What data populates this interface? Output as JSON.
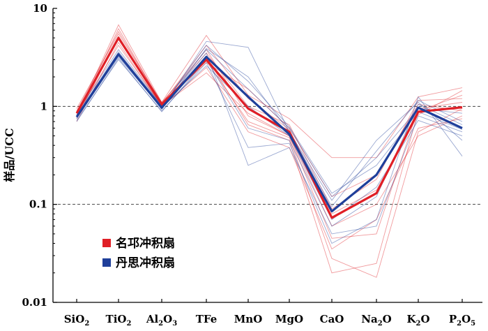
{
  "chart_data": {
    "type": "line",
    "title": "",
    "xlabel": "",
    "ylabel": "样品/UCC",
    "yscale": "log",
    "ylim": [
      0.01,
      10
    ],
    "ytick_labels": [
      "0.01",
      "0.1",
      "1",
      "10"
    ],
    "reference_lines": [
      0.1,
      1
    ],
    "categories": [
      {
        "base": "SiO",
        "sub": "2",
        "post": "",
        "sub2": ""
      },
      {
        "base": "TiO",
        "sub": "2",
        "post": "",
        "sub2": ""
      },
      {
        "base": "Al",
        "sub": "2",
        "post": "O",
        "sub2": "3"
      },
      {
        "base": "TFe",
        "sub": "",
        "post": "",
        "sub2": ""
      },
      {
        "base": "MnO",
        "sub": "",
        "post": "",
        "sub2": ""
      },
      {
        "base": "MgO",
        "sub": "",
        "post": "",
        "sub2": ""
      },
      {
        "base": "CaO",
        "sub": "",
        "post": "",
        "sub2": ""
      },
      {
        "base": "Na",
        "sub": "2",
        "post": "O",
        "sub2": ""
      },
      {
        "base": "K",
        "sub": "2",
        "post": "O",
        "sub2": ""
      },
      {
        "base": "P",
        "sub": "2",
        "post": "O",
        "sub2": "5"
      }
    ],
    "legend": [
      {
        "label": "名邛冲积扇",
        "color": "#e01f26"
      },
      {
        "label": "丹思冲积扇",
        "color": "#1f3f9a"
      }
    ],
    "series": [
      {
        "name": "名邛冲积扇",
        "color": "#e01f26",
        "role": "mean",
        "values": [
          0.85,
          5.0,
          1.05,
          3.0,
          0.95,
          0.55,
          0.073,
          0.13,
          0.88,
          0.98
        ]
      },
      {
        "name": "丹思冲积扇",
        "color": "#1f3f9a",
        "role": "mean",
        "values": [
          0.78,
          3.4,
          0.97,
          3.2,
          1.25,
          0.52,
          0.085,
          0.2,
          0.97,
          0.6
        ]
      }
    ],
    "sample_series": [
      {
        "group": "名邛冲积扇",
        "color": "#e01f26",
        "values": [
          0.8,
          6.8,
          1.1,
          5.3,
          1.3,
          0.75,
          0.3,
          0.3,
          1.25,
          1.55
        ]
      },
      {
        "group": "名邛冲积扇",
        "color": "#e01f26",
        "values": [
          0.9,
          5.8,
          1.08,
          3.8,
          0.8,
          0.5,
          0.045,
          0.05,
          0.95,
          1.1
        ]
      },
      {
        "group": "名邛冲积扇",
        "color": "#e01f26",
        "values": [
          0.75,
          5.2,
          1.0,
          3.2,
          0.65,
          0.45,
          0.02,
          0.025,
          0.9,
          1.3
        ]
      },
      {
        "group": "名邛冲积扇",
        "color": "#e01f26",
        "values": [
          0.88,
          4.8,
          1.05,
          2.8,
          1.5,
          0.6,
          0.12,
          0.2,
          1.05,
          0.9
        ]
      },
      {
        "group": "名邛冲积扇",
        "color": "#e01f26",
        "values": [
          0.7,
          4.5,
          0.98,
          2.5,
          0.55,
          0.38,
          0.035,
          0.07,
          0.6,
          0.75
        ]
      },
      {
        "group": "名邛冲积扇",
        "color": "#e01f26",
        "values": [
          0.95,
          5.5,
          1.1,
          3.5,
          1.0,
          0.65,
          0.09,
          0.18,
          1.15,
          1.2
        ]
      },
      {
        "group": "名邛冲积扇",
        "color": "#e01f26",
        "values": [
          0.82,
          4.2,
          1.02,
          2.2,
          0.85,
          0.5,
          0.06,
          0.1,
          0.5,
          0.8
        ]
      },
      {
        "group": "名邛冲积扇",
        "color": "#e01f26",
        "values": [
          0.78,
          6.2,
          1.06,
          4.2,
          1.2,
          0.58,
          0.08,
          0.14,
          0.82,
          1.45
        ]
      },
      {
        "group": "名邛冲积扇",
        "color": "#e01f26",
        "values": [
          0.86,
          4.9,
          1.03,
          2.9,
          0.7,
          0.48,
          0.028,
          0.018,
          0.55,
          0.95
        ]
      },
      {
        "group": "丹思冲积扇",
        "color": "#1f3f9a",
        "values": [
          0.75,
          3.2,
          0.95,
          4.6,
          4.0,
          0.55,
          0.11,
          0.45,
          1.1,
          0.45
        ]
      },
      {
        "group": "丹思冲积扇",
        "color": "#1f3f9a",
        "values": [
          0.8,
          3.6,
          1.0,
          3.5,
          0.25,
          0.38,
          0.05,
          0.06,
          0.8,
          0.55
        ]
      },
      {
        "group": "丹思冲积扇",
        "color": "#1f3f9a",
        "values": [
          0.72,
          3.0,
          0.9,
          2.8,
          0.38,
          0.42,
          0.04,
          0.07,
          1.25,
          0.31
        ]
      },
      {
        "group": "丹思冲积扇",
        "color": "#1f3f9a",
        "values": [
          0.85,
          3.8,
          1.02,
          3.8,
          1.5,
          0.6,
          0.12,
          0.3,
          0.95,
          0.85
        ]
      },
      {
        "group": "丹思冲积扇",
        "color": "#1f3f9a",
        "values": [
          0.78,
          3.3,
          0.97,
          2.6,
          1.0,
          0.5,
          0.07,
          0.15,
          0.72,
          0.5
        ]
      },
      {
        "group": "丹思冲积扇",
        "color": "#1f3f9a",
        "values": [
          0.82,
          3.5,
          0.93,
          3.9,
          2.0,
          0.55,
          0.095,
          0.35,
          1.15,
          0.7
        ]
      },
      {
        "group": "丹思冲积扇",
        "color": "#1f3f9a",
        "values": [
          0.7,
          3.1,
          0.88,
          3.0,
          0.6,
          0.45,
          0.06,
          0.12,
          1.05,
          0.65
        ]
      },
      {
        "group": "丹思冲积扇",
        "color": "#1f3f9a",
        "values": [
          0.76,
          3.4,
          0.99,
          4.2,
          1.8,
          0.62,
          0.13,
          0.25,
          0.88,
          0.58
        ]
      }
    ]
  }
}
